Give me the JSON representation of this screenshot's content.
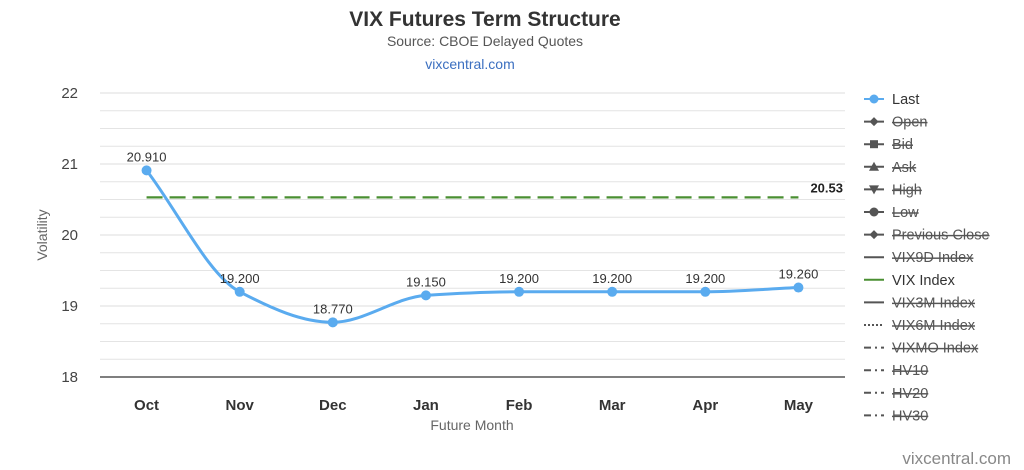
{
  "chart_data": {
    "type": "line",
    "title": "VIX Futures Term Structure",
    "subtitle": "Source: CBOE Delayed Quotes",
    "link": "vixcentral.com",
    "xlabel": "Future Month",
    "ylabel": "Volatility",
    "categories": [
      "Oct",
      "Nov",
      "Dec",
      "Jan",
      "Feb",
      "Mar",
      "Apr",
      "May"
    ],
    "ylim": [
      18,
      22
    ],
    "yticks": [
      18,
      19,
      20,
      21,
      22
    ],
    "grid": true,
    "legend_position": "right",
    "series": [
      {
        "name": "Last",
        "values": [
          20.91,
          19.2,
          18.77,
          19.15,
          19.2,
          19.2,
          19.2,
          19.26
        ],
        "labels": [
          "20.910",
          "19.200",
          "18.770",
          "19.150",
          "19.200",
          "19.200",
          "19.200",
          "19.260"
        ],
        "color": "#5aabef",
        "style": "spline-marker"
      },
      {
        "name": "VIX Index",
        "value": 20.53,
        "label": "20.53",
        "color": "#4a8f32",
        "style": "dashed"
      }
    ],
    "legend": [
      {
        "name": "Last",
        "symbol": "circle",
        "visible": true
      },
      {
        "name": "Open",
        "symbol": "diamond",
        "visible": false
      },
      {
        "name": "Bid",
        "symbol": "square",
        "visible": false
      },
      {
        "name": "Ask",
        "symbol": "triangle",
        "visible": false
      },
      {
        "name": "High",
        "symbol": "triangle-down",
        "visible": false
      },
      {
        "name": "Low",
        "symbol": "circle",
        "visible": false
      },
      {
        "name": "Previous Close",
        "symbol": "diamond",
        "visible": false
      },
      {
        "name": "VIX9D Index",
        "symbol": "solid",
        "visible": false
      },
      {
        "name": "VIX Index",
        "symbol": "solid",
        "visible": true
      },
      {
        "name": "VIX3M Index",
        "symbol": "solid",
        "visible": false
      },
      {
        "name": "VIX6M Index",
        "symbol": "dotted",
        "visible": false
      },
      {
        "name": "VIXMO Index",
        "symbol": "dashdot",
        "visible": false
      },
      {
        "name": "HV10",
        "symbol": "dashdot",
        "visible": false
      },
      {
        "name": "HV20",
        "symbol": "dashdot",
        "visible": false
      },
      {
        "name": "HV30",
        "symbol": "dashdot",
        "visible": false
      }
    ]
  },
  "credit": "vixcentral.com",
  "colors": {
    "last": "#5aabef",
    "vix": "#4a8f32",
    "hidden": "#cccccc",
    "grid": "#e4e4e4",
    "axis": "#333333"
  }
}
